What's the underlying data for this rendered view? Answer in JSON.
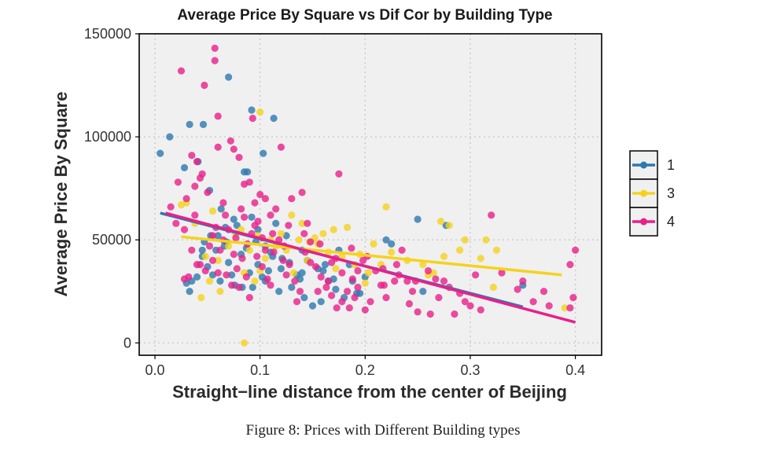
{
  "chart_data": {
    "type": "scatter",
    "title": "Average Price By Square vs Dif Cor by Building Type",
    "xlabel": "Straight−line distance from the center of Beijing",
    "ylabel": "Average Price By Square",
    "xlim": [
      -0.015,
      0.425
    ],
    "ylim": [
      -6000,
      150000
    ],
    "xticks": [
      0.0,
      0.1,
      0.2,
      0.3,
      0.4
    ],
    "xtick_labels": [
      "0.0",
      "0.1",
      "0.2",
      "0.3",
      "0.4"
    ],
    "yticks": [
      0,
      50000,
      100000,
      150000
    ],
    "ytick_labels": [
      "0",
      "50000",
      "100000",
      "150000"
    ],
    "grid": true,
    "legend_position": "right",
    "series": [
      {
        "name": "1",
        "color": "#2E78AE",
        "trend": [
          [
            0.005,
            63000
          ],
          [
            0.35,
            17500
          ]
        ],
        "points": [
          [
            0.005,
            92000
          ],
          [
            0.014,
            100000
          ],
          [
            0.028,
            85000
          ],
          [
            0.033,
            106000
          ],
          [
            0.046,
            106000
          ],
          [
            0.07,
            129000
          ],
          [
            0.092,
            113000
          ],
          [
            0.113,
            109000
          ],
          [
            0.103,
            92000
          ],
          [
            0.085,
            83000
          ],
          [
            0.088,
            83000
          ],
          [
            0.041,
            88000
          ],
          [
            0.052,
            74000
          ],
          [
            0.06,
            52000
          ],
          [
            0.075,
            60000
          ],
          [
            0.068,
            49000
          ],
          [
            0.082,
            43000
          ],
          [
            0.098,
            38000
          ],
          [
            0.11,
            44000
          ],
          [
            0.12,
            36000
          ],
          [
            0.045,
            42000
          ],
          [
            0.05,
            37000
          ],
          [
            0.035,
            30000
          ],
          [
            0.062,
            30000
          ],
          [
            0.076,
            28000
          ],
          [
            0.09,
            34000
          ],
          [
            0.105,
            30000
          ],
          [
            0.118,
            25000
          ],
          [
            0.13,
            27000
          ],
          [
            0.142,
            22000
          ],
          [
            0.15,
            18000
          ],
          [
            0.158,
            20000
          ],
          [
            0.165,
            30000
          ],
          [
            0.172,
            26000
          ],
          [
            0.18,
            22000
          ],
          [
            0.188,
            30000
          ],
          [
            0.195,
            24000
          ],
          [
            0.22,
            50000
          ],
          [
            0.225,
            48000
          ],
          [
            0.25,
            60000
          ],
          [
            0.255,
            25000
          ],
          [
            0.277,
            57000
          ],
          [
            0.35,
            28000
          ],
          [
            0.098,
            55000
          ],
          [
            0.105,
            47000
          ],
          [
            0.14,
            45000
          ],
          [
            0.125,
            52000
          ],
          [
            0.07,
            39000
          ],
          [
            0.055,
            33000
          ],
          [
            0.083,
            27000
          ],
          [
            0.092,
            61000
          ],
          [
            0.115,
            58000
          ],
          [
            0.128,
            39000
          ],
          [
            0.135,
            33000
          ],
          [
            0.145,
            40000
          ],
          [
            0.16,
            35000
          ],
          [
            0.175,
            45000
          ],
          [
            0.185,
            38000
          ],
          [
            0.2,
            32000
          ],
          [
            0.063,
            65000
          ],
          [
            0.078,
            57000
          ],
          [
            0.096,
            49000
          ],
          [
            0.112,
            42000
          ],
          [
            0.047,
            49000
          ],
          [
            0.058,
            45000
          ],
          [
            0.067,
            56000
          ],
          [
            0.073,
            33000
          ],
          [
            0.102,
            32000
          ],
          [
            0.108,
            35000
          ],
          [
            0.14,
            34000
          ],
          [
            0.17,
            31000
          ],
          [
            0.155,
            36000
          ],
          [
            0.121,
            41000
          ],
          [
            0.087,
            46000
          ],
          [
            0.03,
            29000
          ],
          [
            0.04,
            32000
          ],
          [
            0.033,
            25000
          ],
          [
            0.045,
            45000
          ],
          [
            0.093,
            27000
          ],
          [
            0.138,
            31000
          ],
          [
            0.162,
            38000
          ],
          [
            0.192,
            24000
          ],
          [
            0.053,
            52000
          ],
          [
            0.066,
            47000
          ]
        ]
      },
      {
        "name": "3",
        "color": "#F5D21E",
        "trend": [
          [
            0.025,
            51500
          ],
          [
            0.387,
            33000
          ]
        ],
        "points": [
          [
            0.085,
            0
          ],
          [
            0.1,
            112000
          ],
          [
            0.025,
            67000
          ],
          [
            0.03,
            68000
          ],
          [
            0.048,
            42000
          ],
          [
            0.044,
            22000
          ],
          [
            0.06,
            40000
          ],
          [
            0.07,
            47000
          ],
          [
            0.077,
            53000
          ],
          [
            0.085,
            34000
          ],
          [
            0.09,
            45000
          ],
          [
            0.1,
            35000
          ],
          [
            0.11,
            50000
          ],
          [
            0.115,
            47000
          ],
          [
            0.13,
            62000
          ],
          [
            0.14,
            58000
          ],
          [
            0.145,
            40000
          ],
          [
            0.155,
            48000
          ],
          [
            0.165,
            44000
          ],
          [
            0.172,
            36000
          ],
          [
            0.178,
            42000
          ],
          [
            0.183,
            56000
          ],
          [
            0.19,
            38000
          ],
          [
            0.2,
            29000
          ],
          [
            0.215,
            38000
          ],
          [
            0.22,
            66000
          ],
          [
            0.24,
            40000
          ],
          [
            0.26,
            33000
          ],
          [
            0.272,
            59000
          ],
          [
            0.28,
            57000
          ],
          [
            0.29,
            45000
          ],
          [
            0.295,
            50000
          ],
          [
            0.31,
            41000
          ],
          [
            0.315,
            50000
          ],
          [
            0.322,
            27000
          ],
          [
            0.325,
            45000
          ],
          [
            0.39,
            17000
          ],
          [
            0.265,
            34000
          ],
          [
            0.225,
            44000
          ],
          [
            0.208,
            48000
          ],
          [
            0.195,
            43000
          ],
          [
            0.16,
            53000
          ],
          [
            0.147,
            49000
          ],
          [
            0.152,
            51000
          ],
          [
            0.125,
            45000
          ],
          [
            0.105,
            41000
          ],
          [
            0.095,
            30000
          ],
          [
            0.082,
            55000
          ],
          [
            0.055,
            64000
          ],
          [
            0.038,
            58000
          ],
          [
            0.132,
            34000
          ],
          [
            0.17,
            55000
          ],
          [
            0.203,
            34000
          ],
          [
            0.255,
            38000
          ],
          [
            0.275,
            42000
          ],
          [
            0.12,
            53000
          ],
          [
            0.062,
            25000
          ],
          [
            0.052,
            30000
          ],
          [
            0.098,
            52000
          ],
          [
            0.137,
            50000
          ]
        ]
      },
      {
        "name": "4",
        "color": "#E8208A",
        "trend": [
          [
            0.01,
            63000
          ],
          [
            0.4,
            10000
          ]
        ],
        "points": [
          [
            0.057,
            143000
          ],
          [
            0.057,
            137000
          ],
          [
            0.025,
            132000
          ],
          [
            0.047,
            125000
          ],
          [
            0.035,
            91000
          ],
          [
            0.04,
            88000
          ],
          [
            0.045,
            82000
          ],
          [
            0.06,
            110000
          ],
          [
            0.06,
            95000
          ],
          [
            0.072,
            98000
          ],
          [
            0.075,
            94000
          ],
          [
            0.08,
            90000
          ],
          [
            0.085,
            77000
          ],
          [
            0.09,
            78000
          ],
          [
            0.095,
            68000
          ],
          [
            0.1,
            72000
          ],
          [
            0.105,
            70000
          ],
          [
            0.11,
            62000
          ],
          [
            0.12,
            95000
          ],
          [
            0.093,
            109000
          ],
          [
            0.05,
            73000
          ],
          [
            0.043,
            80000
          ],
          [
            0.038,
            76000
          ],
          [
            0.03,
            70000
          ],
          [
            0.02,
            58000
          ],
          [
            0.028,
            55000
          ],
          [
            0.035,
            45000
          ],
          [
            0.04,
            38000
          ],
          [
            0.032,
            32000
          ],
          [
            0.028,
            31000
          ],
          [
            0.048,
            35000
          ],
          [
            0.055,
            40000
          ],
          [
            0.062,
            45000
          ],
          [
            0.065,
            50000
          ],
          [
            0.07,
            55000
          ],
          [
            0.075,
            43000
          ],
          [
            0.078,
            36000
          ],
          [
            0.083,
            41000
          ],
          [
            0.088,
            48000
          ],
          [
            0.092,
            53000
          ],
          [
            0.097,
            42000
          ],
          [
            0.102,
            37000
          ],
          [
            0.107,
            31000
          ],
          [
            0.113,
            44000
          ],
          [
            0.118,
            50000
          ],
          [
            0.123,
            47000
          ],
          [
            0.128,
            38000
          ],
          [
            0.133,
            30000
          ],
          [
            0.138,
            25000
          ],
          [
            0.143,
            44000
          ],
          [
            0.148,
            49000
          ],
          [
            0.153,
            37000
          ],
          [
            0.158,
            32000
          ],
          [
            0.163,
            27000
          ],
          [
            0.168,
            23000
          ],
          [
            0.173,
            17000
          ],
          [
            0.178,
            20000
          ],
          [
            0.183,
            25000
          ],
          [
            0.188,
            31000
          ],
          [
            0.193,
            35000
          ],
          [
            0.198,
            40000
          ],
          [
            0.205,
            20000
          ],
          [
            0.21,
            35000
          ],
          [
            0.218,
            28000
          ],
          [
            0.22,
            22000
          ],
          [
            0.23,
            38000
          ],
          [
            0.235,
            45000
          ],
          [
            0.24,
            30000
          ],
          [
            0.245,
            25000
          ],
          [
            0.25,
            15000
          ],
          [
            0.26,
            35000
          ],
          [
            0.27,
            22000
          ],
          [
            0.275,
            30000
          ],
          [
            0.28,
            27000
          ],
          [
            0.29,
            24000
          ],
          [
            0.295,
            20000
          ],
          [
            0.3,
            18000
          ],
          [
            0.305,
            33000
          ],
          [
            0.32,
            62000
          ],
          [
            0.33,
            34000
          ],
          [
            0.345,
            26000
          ],
          [
            0.35,
            30000
          ],
          [
            0.36,
            20000
          ],
          [
            0.37,
            25000
          ],
          [
            0.375,
            18000
          ],
          [
            0.395,
            38000
          ],
          [
            0.4,
            45000
          ],
          [
            0.398,
            22000
          ],
          [
            0.395,
            17000
          ],
          [
            0.175,
            82000
          ],
          [
            0.14,
            73000
          ],
          [
            0.13,
            70000
          ],
          [
            0.145,
            58000
          ],
          [
            0.115,
            65000
          ],
          [
            0.098,
            59000
          ],
          [
            0.065,
            68000
          ],
          [
            0.085,
            61000
          ],
          [
            0.055,
            52000
          ],
          [
            0.068,
            33000
          ],
          [
            0.08,
            27000
          ],
          [
            0.09,
            22000
          ],
          [
            0.11,
            28000
          ],
          [
            0.125,
            33000
          ],
          [
            0.135,
            20000
          ],
          [
            0.155,
            25000
          ],
          [
            0.165,
            30000
          ],
          [
            0.185,
            17000
          ],
          [
            0.19,
            22000
          ],
          [
            0.2,
            16000
          ],
          [
            0.215,
            28000
          ],
          [
            0.228,
            30000
          ],
          [
            0.242,
            19000
          ],
          [
            0.262,
            14000
          ],
          [
            0.285,
            14000
          ],
          [
            0.31,
            16000
          ],
          [
            0.105,
            45000
          ],
          [
            0.087,
            32000
          ],
          [
            0.073,
            28000
          ],
          [
            0.06,
            34000
          ],
          [
            0.043,
            38000
          ],
          [
            0.052,
            47000
          ],
          [
            0.077,
            51000
          ],
          [
            0.095,
            57000
          ],
          [
            0.112,
            53000
          ],
          [
            0.127,
            57000
          ],
          [
            0.142,
            53000
          ],
          [
            0.157,
            48000
          ],
          [
            0.172,
            41000
          ],
          [
            0.187,
            46000
          ],
          [
            0.202,
            42000
          ],
          [
            0.217,
            36000
          ],
          [
            0.232,
            33000
          ],
          [
            0.248,
            30000
          ],
          [
            0.267,
            31000
          ],
          [
            0.038,
            62000
          ],
          [
            0.015,
            66000
          ],
          [
            0.022,
            78000
          ],
          [
            0.148,
            39000
          ],
          [
            0.168,
            39000
          ],
          [
            0.178,
            34000
          ],
          [
            0.193,
            27000
          ],
          [
            0.122,
            40000
          ],
          [
            0.102,
            51000
          ],
          [
            0.082,
            65000
          ],
          [
            0.067,
            62000
          ],
          [
            0.058,
            56000
          ]
        ]
      }
    ]
  },
  "caption": "Figure 8: Prices with Different Building types"
}
